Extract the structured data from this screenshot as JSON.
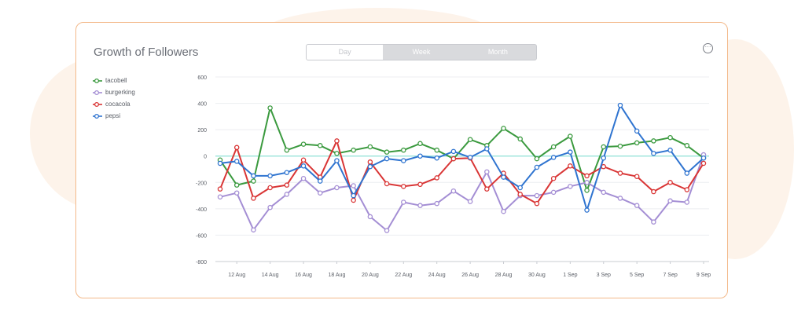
{
  "card": {
    "title": "Growth of Followers",
    "toggle": [
      "Day",
      "Week",
      "Month"
    ],
    "active_toggle": "Day"
  },
  "chart_data": {
    "type": "line",
    "ylim": [
      -800,
      600
    ],
    "yticks": [
      600,
      400,
      200,
      0,
      -200,
      -400,
      -600,
      -800
    ],
    "x_ticks": [
      "12 Aug",
      "14 Aug",
      "16 Aug",
      "18 Aug",
      "20 Aug",
      "22 Aug",
      "24 Aug",
      "26 Aug",
      "28 Aug",
      "30 Aug",
      "1 Sep",
      "3 Sep",
      "5 Sep",
      "7 Sep",
      "9 Sep"
    ],
    "x": [
      "11 Aug",
      "12 Aug",
      "13 Aug",
      "14 Aug",
      "15 Aug",
      "16 Aug",
      "17 Aug",
      "18 Aug",
      "19 Aug",
      "20 Aug",
      "21 Aug",
      "22 Aug",
      "23 Aug",
      "24 Aug",
      "25 Aug",
      "26 Aug",
      "27 Aug",
      "28 Aug",
      "29 Aug",
      "30 Aug",
      "31 Aug",
      "1 Sep",
      "2 Sep",
      "3 Sep",
      "4 Sep",
      "5 Sep",
      "6 Sep",
      "7 Sep",
      "8 Sep",
      "9 Sep"
    ],
    "legend_position": "left",
    "series": [
      {
        "name": "tacobell",
        "color": "#3b9a3f",
        "values": [
          -30,
          -220,
          -190,
          365,
          45,
          90,
          80,
          20,
          45,
          70,
          30,
          45,
          95,
          45,
          -20,
          125,
          80,
          210,
          130,
          -20,
          70,
          150,
          -260,
          70,
          75,
          100,
          115,
          140,
          80,
          -15
        ]
      },
      {
        "name": "burgerking",
        "color": "#a48ed4",
        "values": [
          -310,
          -280,
          -560,
          -390,
          -290,
          -170,
          -280,
          -240,
          -225,
          -460,
          -565,
          -350,
          -375,
          -360,
          -265,
          -345,
          -120,
          -420,
          -300,
          -300,
          -275,
          -230,
          -200,
          -275,
          -320,
          -375,
          -500,
          -340,
          -350,
          10
        ]
      },
      {
        "name": "cocacola",
        "color": "#d93535",
        "values": [
          -250,
          65,
          -320,
          -240,
          -220,
          -30,
          -160,
          115,
          -335,
          -45,
          -210,
          -230,
          -215,
          -165,
          -20,
          -15,
          -250,
          -130,
          -290,
          -360,
          -170,
          -75,
          -150,
          -80,
          -130,
          -155,
          -270,
          -200,
          -255,
          -55
        ]
      },
      {
        "name": "pepsi",
        "color": "#2f74d0",
        "values": [
          -55,
          -40,
          -150,
          -150,
          -125,
          -75,
          -190,
          -35,
          -300,
          -80,
          -20,
          -35,
          0,
          -15,
          35,
          -10,
          55,
          -160,
          -240,
          -85,
          -10,
          30,
          -410,
          -15,
          385,
          190,
          20,
          45,
          -130,
          -15
        ]
      }
    ]
  }
}
